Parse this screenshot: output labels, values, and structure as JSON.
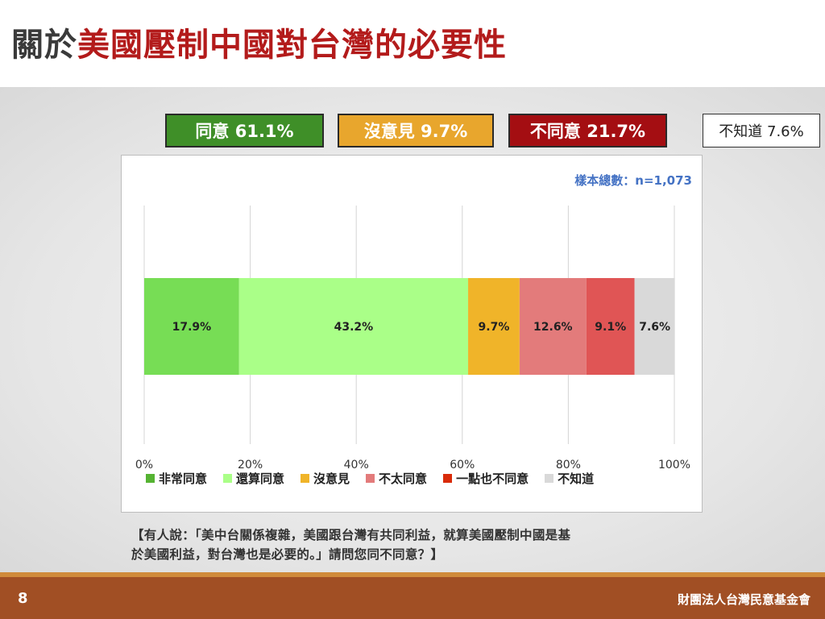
{
  "title": {
    "prefix": "關於",
    "highlight": "美國壓制中國對台灣的必要性"
  },
  "summary": {
    "agree": "同意 61.1%",
    "neutral": "沒意見 9.7%",
    "disagree": "不同意 21.7%",
    "dont_know": "不知道 7.6%"
  },
  "sample_size": "樣本總數：n=1,073",
  "chart_data": {
    "type": "bar",
    "orientation": "horizontal-stacked",
    "xlim": [
      0,
      100
    ],
    "x_ticks": [
      "0%",
      "20%",
      "40%",
      "60%",
      "80%",
      "100%"
    ],
    "grid": true,
    "legend_position": "bottom",
    "series": [
      {
        "name": "非常同意",
        "value": 17.9,
        "label": "17.9%",
        "color": "#77dd55"
      },
      {
        "name": "還算同意",
        "value": 43.2,
        "label": "43.2%",
        "color": "#aaff88"
      },
      {
        "name": "沒意見",
        "value": 9.7,
        "label": "9.7%",
        "color": "#f0b429"
      },
      {
        "name": "不太同意",
        "value": 12.6,
        "label": "12.6%",
        "color": "#e37b7b"
      },
      {
        "name": "一點也不同意",
        "value": 9.1,
        "label": "9.1%",
        "color": "#e05555"
      },
      {
        "name": "不知道",
        "value": 7.6,
        "label": "7.6%",
        "color": "#d9d9d9"
      }
    ],
    "legend_colors": [
      "#55b332",
      "#aaff88",
      "#f0b429",
      "#e37b7b",
      "#d92b0a",
      "#d9d9d9"
    ]
  },
  "question": {
    "line1": "【有人說：「美中台關係複雜，美國跟台灣有共同利益，就算美國壓制中國是基",
    "line2": "於美國利益，對台灣也是必要的。」請問您同不同意？】"
  },
  "footer": {
    "page": "8",
    "org": "財團法人台灣民意基金會"
  }
}
